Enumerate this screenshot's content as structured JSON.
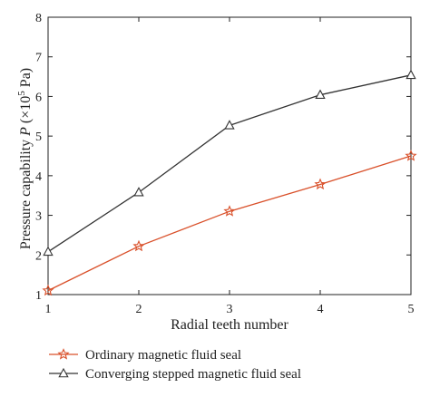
{
  "chart_data": {
    "type": "line",
    "title": "",
    "xlabel": "Radial teeth number",
    "ylabel_prefix": "Pressure capability ",
    "ylabel_var": "P",
    "ylabel_unit_open": " (×10",
    "ylabel_unit_exp": "5",
    "ylabel_unit_close": " Pa)",
    "x": [
      1,
      2,
      3,
      4,
      5
    ],
    "xlim": [
      1,
      5
    ],
    "ylim": [
      1,
      8
    ],
    "xticks": [
      "1",
      "2",
      "3",
      "4",
      "5"
    ],
    "yticks": [
      "1",
      "2",
      "3",
      "4",
      "5",
      "6",
      "7",
      "8"
    ],
    "grid": false,
    "legend_position": "below",
    "series": [
      {
        "name": "Ordinary magnetic fluid seal",
        "values": [
          1.1,
          2.22,
          3.1,
          3.78,
          4.5
        ],
        "color": "#d9502a",
        "marker": "star"
      },
      {
        "name": "Converging stepped magnetic fluid seal",
        "values": [
          2.08,
          3.58,
          5.27,
          6.04,
          6.54
        ],
        "color": "#333333",
        "marker": "triangle"
      }
    ]
  }
}
